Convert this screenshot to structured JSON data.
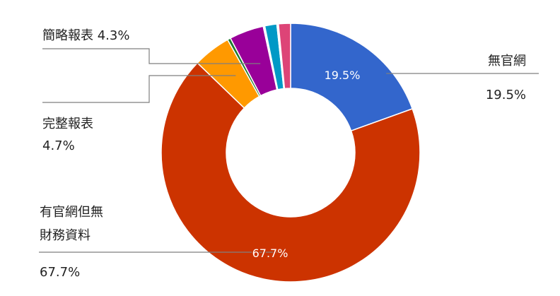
{
  "chart_data": {
    "type": "pie",
    "variant": "donut",
    "title": "",
    "start": "12 o'clock, clockwise",
    "slices": [
      {
        "label": "無官網",
        "value": 19.5,
        "pct_text": "19.5%",
        "color": "#3366cc",
        "inner_label": "19.5%"
      },
      {
        "label": "有官網但無財務資料",
        "value": 67.7,
        "pct_text": "67.7%",
        "color": "#cc3300",
        "inner_label": "67.7%"
      },
      {
        "label": "完整報表",
        "value": 4.7,
        "pct_text": "4.7%",
        "color": "#ff9900"
      },
      {
        "label": "",
        "value": 0.4,
        "pct_text": "",
        "color": "#1e7a2e"
      },
      {
        "label": "簡略報表",
        "value": 4.3,
        "pct_text": "4.3%",
        "color": "#990099"
      },
      {
        "label": "",
        "value": 0.2,
        "pct_text": "",
        "color": "#ffffff"
      },
      {
        "label": "",
        "value": 1.5,
        "pct_text": "",
        "color": "#0099c6"
      },
      {
        "label": "",
        "value": 0.2,
        "pct_text": "",
        "color": "#ffffff"
      },
      {
        "label": "",
        "value": 1.5,
        "pct_text": "",
        "color": "#dd4477"
      }
    ]
  }
}
